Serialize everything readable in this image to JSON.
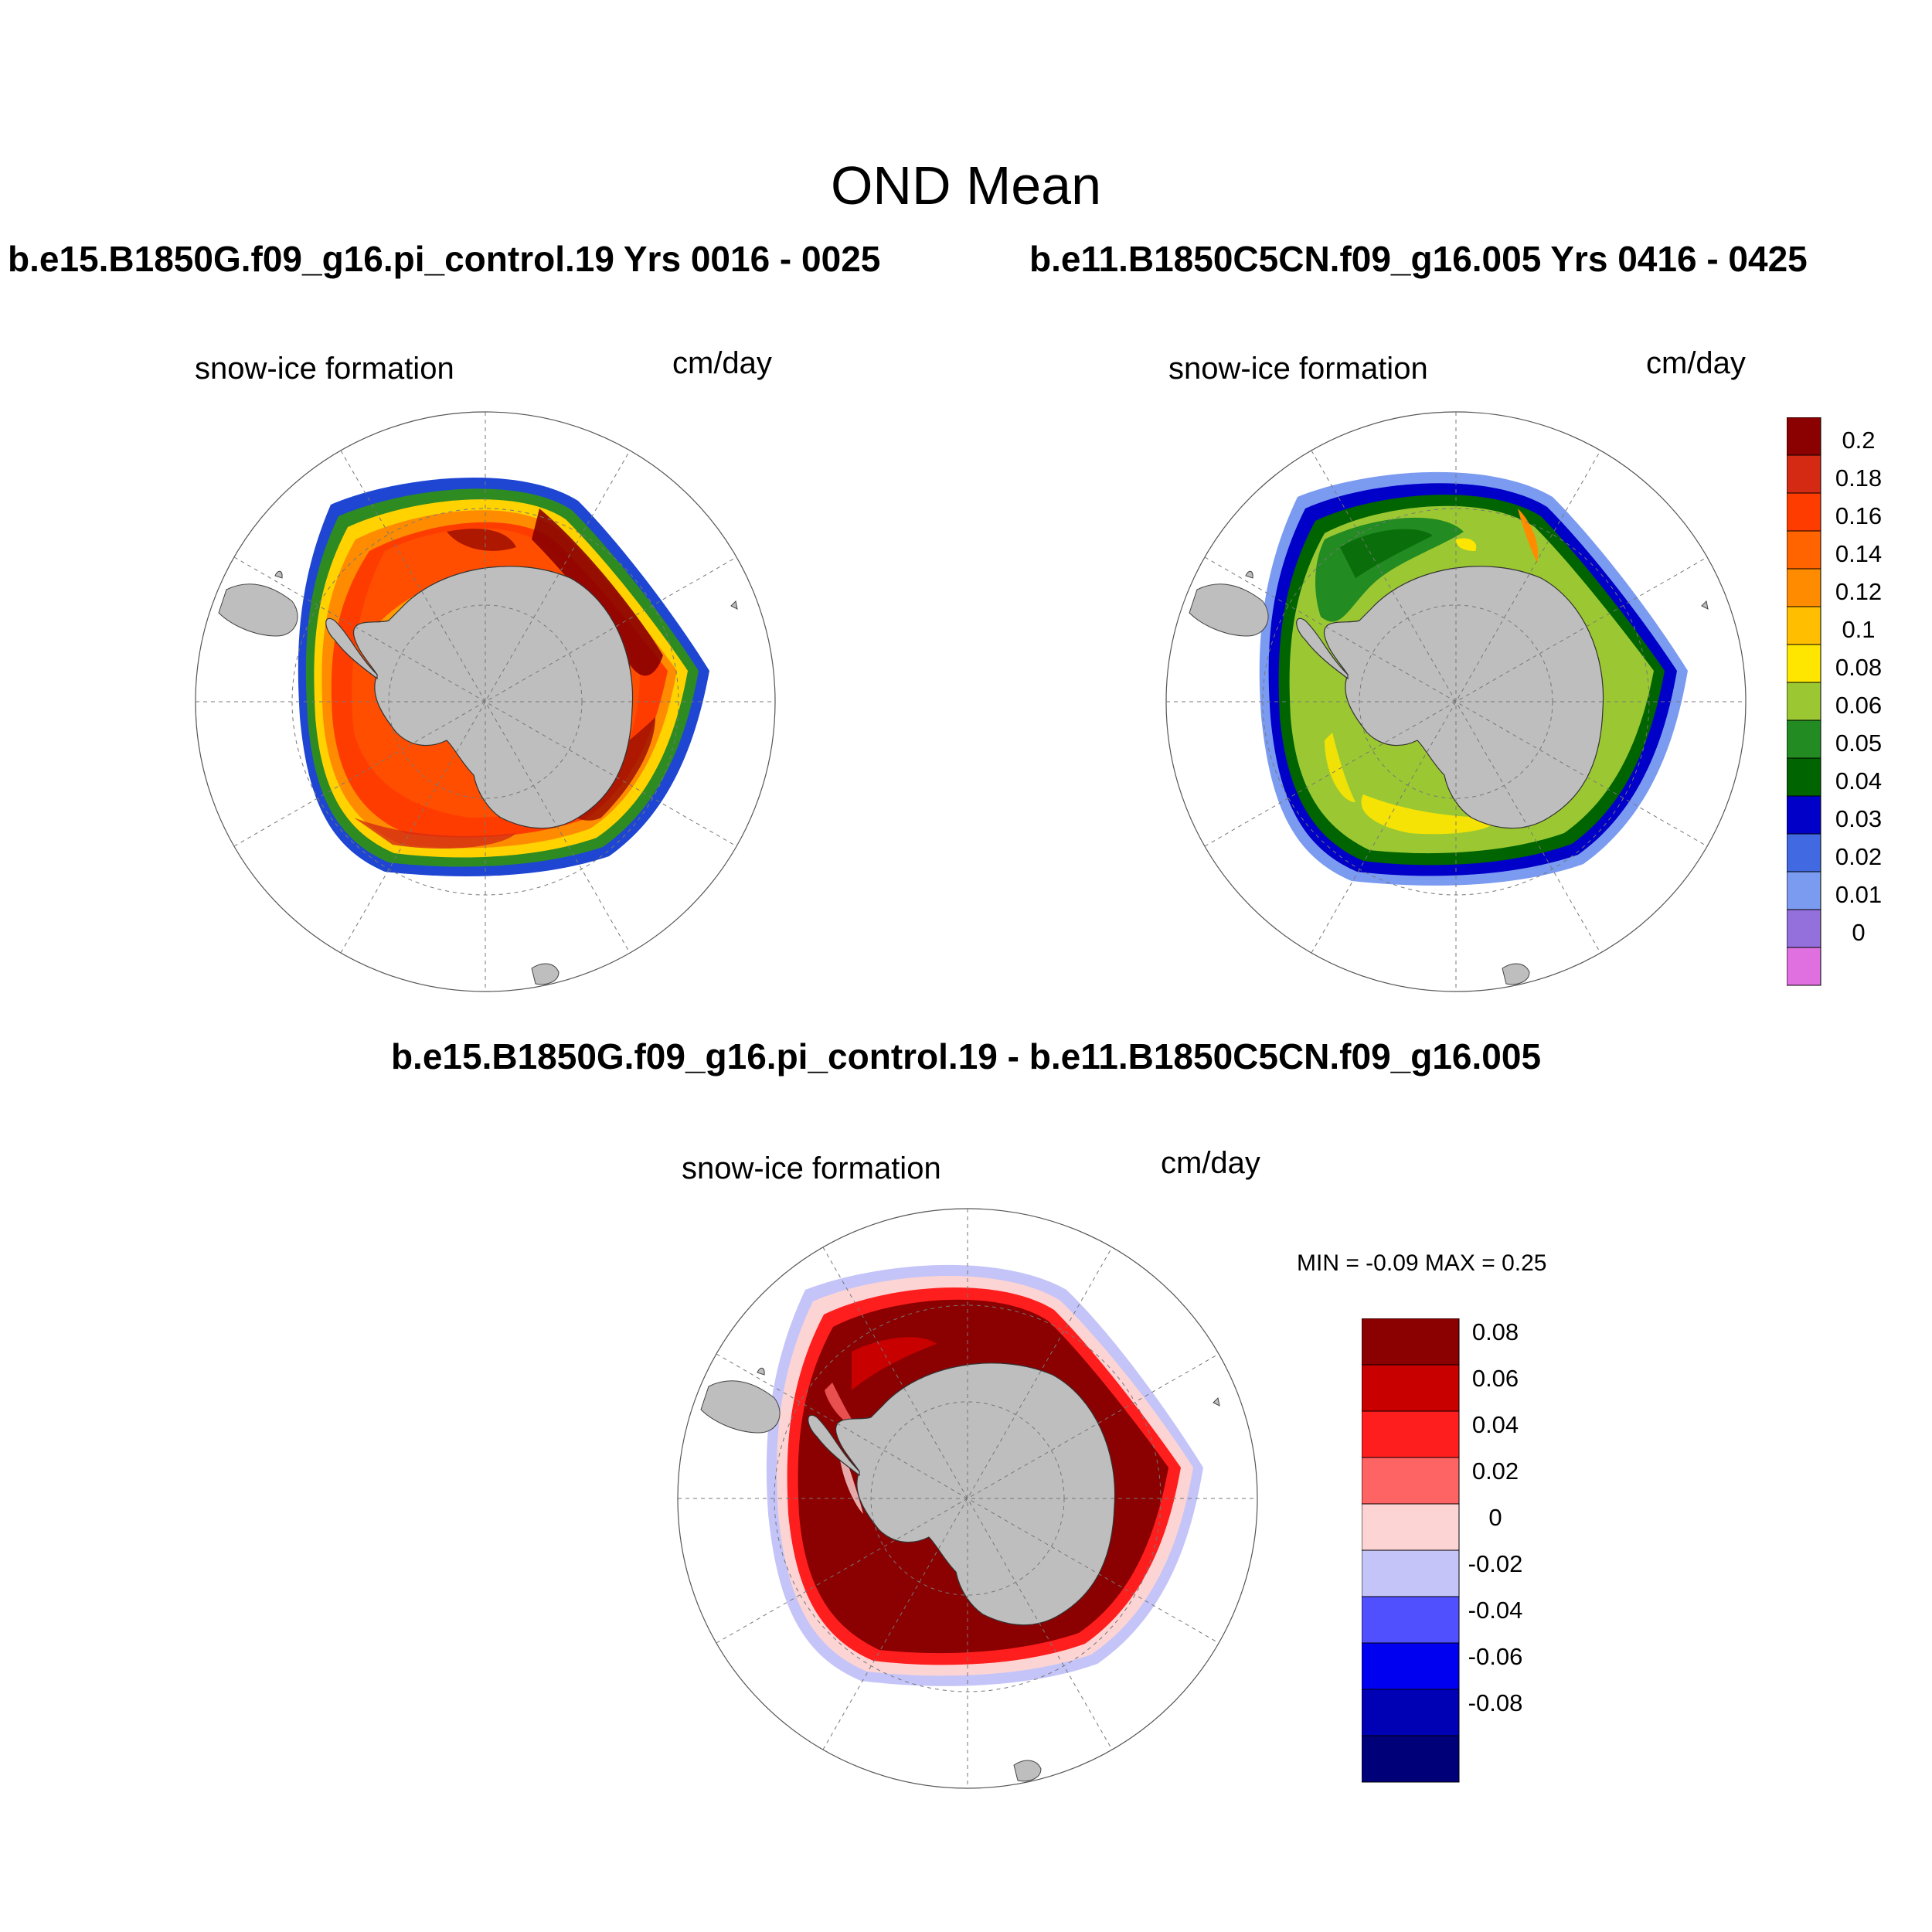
{
  "main_title": "OND Mean",
  "panels": [
    {
      "case_title": "b.e15.B1850G.f09_g16.pi_control.19  Yrs 0016 - 0025",
      "variable": "snow-ice formation",
      "units": "cm/day"
    },
    {
      "case_title": "b.e11.B1850C5CN.f09_g16.005  Yrs 0416 - 0425",
      "variable": "snow-ice formation",
      "units": "cm/day"
    },
    {
      "case_title": "b.e15.B1850G.f09_g16.pi_control.19 - b.e11.B1850C5CN.f09_g16.005",
      "variable": "snow-ice formation",
      "units": "cm/day",
      "min_max": "MIN =  -0.09 MAX =   0.25"
    }
  ],
  "colorbar_abs": {
    "labels": [
      "0.2",
      "0.18",
      "0.16",
      "0.14",
      "0.12",
      "0.1",
      "0.08",
      "0.06",
      "0.05",
      "0.04",
      "0.03",
      "0.02",
      "0.01",
      "0"
    ],
    "colors": [
      "#8b0000",
      "#d42a14",
      "#ff3c00",
      "#ff6400",
      "#ff8c00",
      "#ffbe00",
      "#ffe600",
      "#9bc832",
      "#228b22",
      "#006400",
      "#0000c8",
      "#4169e1",
      "#7b9bf0",
      "#9370db",
      "#e070e0"
    ]
  },
  "colorbar_diff": {
    "labels": [
      "0.08",
      "0.06",
      "0.04",
      "0.02",
      "0",
      "-0.02",
      "-0.04",
      "-0.06",
      "-0.08"
    ],
    "colors": [
      "#8b0000",
      "#c80000",
      "#ff1e1e",
      "#ff6464",
      "#fcd4d4",
      "#c4c4f8",
      "#5050ff",
      "#0000f0",
      "#0000b4",
      "#000078"
    ]
  }
}
